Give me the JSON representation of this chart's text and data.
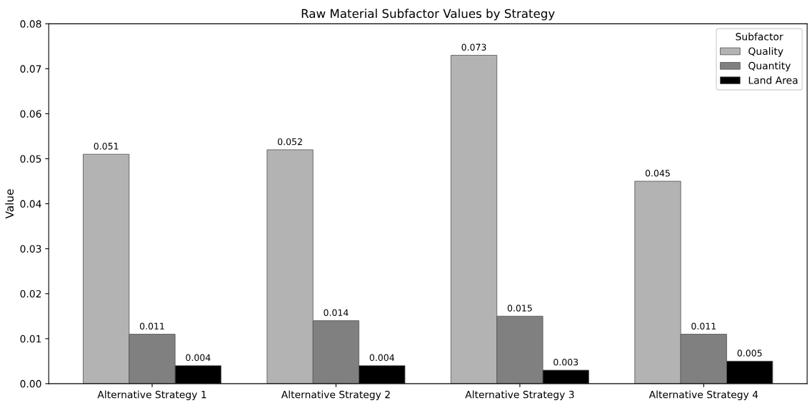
{
  "chart_data": {
    "type": "bar",
    "title": "Raw Material Subfactor Values by Strategy",
    "ylabel": "Value",
    "legend_title": "Subfactor",
    "categories": [
      "Alternative Strategy 1",
      "Alternative Strategy 2",
      "Alternative Strategy 3",
      "Alternative Strategy 4"
    ],
    "series": [
      {
        "name": "Quality",
        "color": "#b3b3b3",
        "values": [
          0.051,
          0.052,
          0.073,
          0.045
        ]
      },
      {
        "name": "Quantity",
        "color": "#808080",
        "values": [
          0.011,
          0.014,
          0.015,
          0.011
        ]
      },
      {
        "name": "Land Area",
        "color": "#000000",
        "values": [
          0.004,
          0.004,
          0.003,
          0.005
        ]
      }
    ],
    "ylim": [
      0,
      0.08
    ],
    "yticks": [
      {
        "value": 0,
        "label": "0.00"
      },
      {
        "value": 0.01,
        "label": "0.01"
      },
      {
        "value": 0.02,
        "label": "0.02"
      },
      {
        "value": 0.03,
        "label": "0.03"
      },
      {
        "value": 0.04,
        "label": "0.04"
      },
      {
        "value": 0.05,
        "label": "0.05"
      },
      {
        "value": 0.06,
        "label": "0.06"
      },
      {
        "value": 0.07,
        "label": "0.07"
      },
      {
        "value": 0.08,
        "label": "0.08"
      }
    ],
    "data_labels": true,
    "legend": "top right",
    "grid": false
  }
}
